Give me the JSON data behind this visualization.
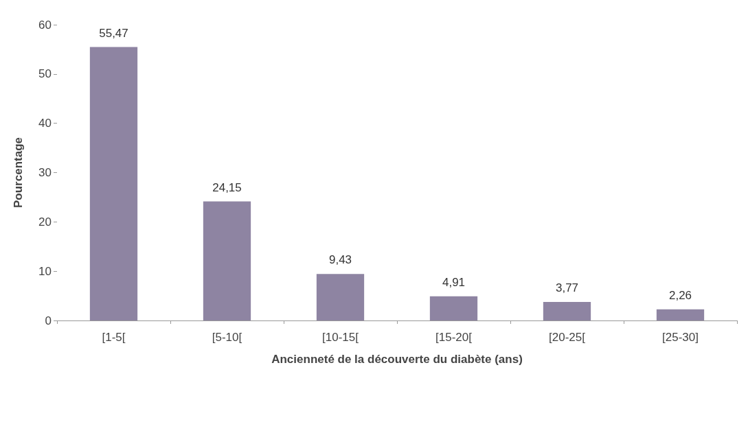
{
  "chart_data": {
    "type": "bar",
    "xlabel": "Ancienneté de la découverte du diabète (ans)",
    "ylabel": "Pourcentage",
    "categories": [
      "[1-5[",
      "[5-10[",
      "[10-15[",
      "[15-20[",
      "[20-25[",
      "[25-30]"
    ],
    "values": [
      55.47,
      24.15,
      9.43,
      4.91,
      3.77,
      2.26
    ],
    "value_labels": [
      "55,47",
      "24,15",
      "9,43",
      "4,91",
      "3,77",
      "2,26"
    ],
    "color": "#8e84a2",
    "ylim": [
      0,
      60
    ],
    "yticks": [
      0,
      10,
      20,
      30,
      40,
      50,
      60
    ]
  }
}
